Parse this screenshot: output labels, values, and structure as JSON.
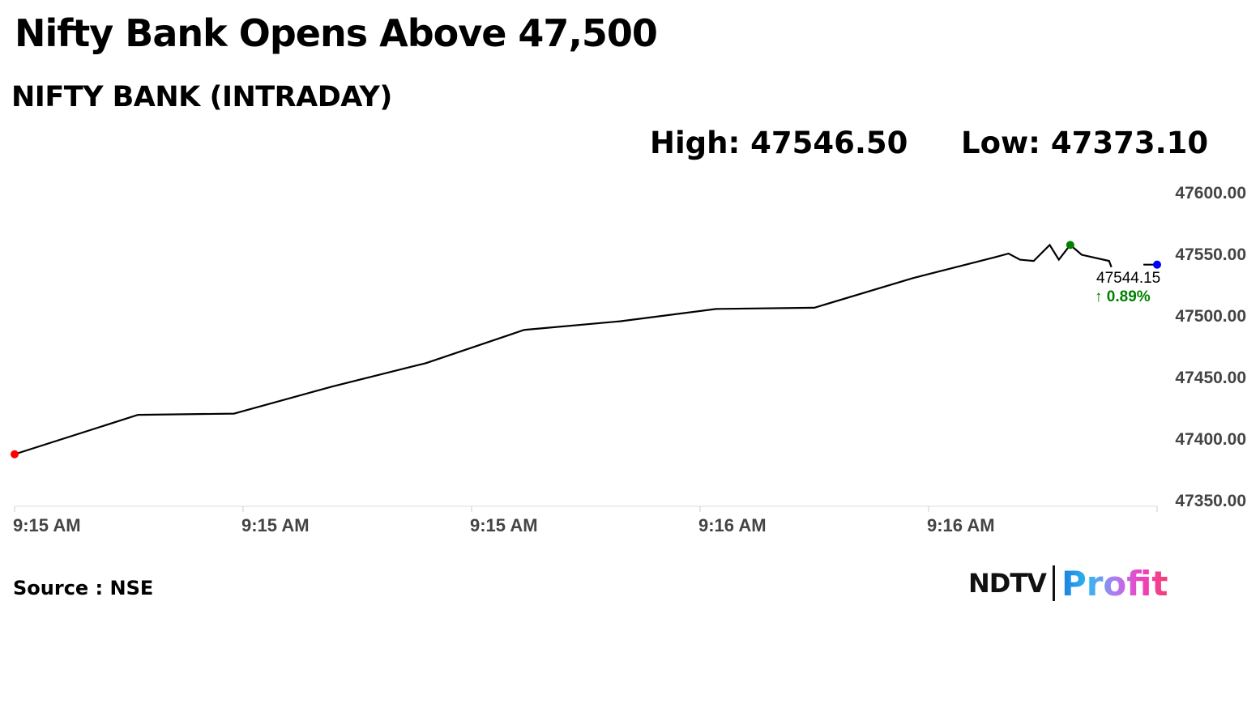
{
  "title": "Nifty Bank Opens Above 47,500",
  "subtitle": "NIFTY BANK (INTRADAY)",
  "high_label": "High: 47546.50",
  "low_label": "Low: 47373.10",
  "source": "Source : NSE",
  "logo": {
    "ndtv": "NDTV",
    "profit": "Profit"
  },
  "chart_data": {
    "type": "line",
    "xlabel": "",
    "ylabel": "",
    "x_ticks": [
      {
        "x": 0,
        "label": "9:15 AM"
      },
      {
        "x": 1,
        "label": "9:15 AM"
      },
      {
        "x": 2,
        "label": "9:15 AM"
      },
      {
        "x": 3,
        "label": "9:16 AM"
      },
      {
        "x": 4,
        "label": "9:16 AM"
      }
    ],
    "xlim": [
      0,
      5
    ],
    "ylim": [
      47350,
      47600
    ],
    "y_ticks": [
      "47600.00",
      "47550.00",
      "47500.00",
      "47450.00",
      "47400.00",
      "47350.00"
    ],
    "y_axis_position": "right",
    "line_color": "#000000",
    "segments": [
      [
        [
          0,
          47387
        ],
        [
          0.54,
          47419
        ],
        [
          0.96,
          47420
        ],
        [
          1.39,
          47442
        ],
        [
          1.8,
          47461
        ],
        [
          2.23,
          47488
        ],
        [
          2.65,
          47495
        ],
        [
          3.07,
          47505
        ],
        [
          3.5,
          47506
        ],
        [
          3.93,
          47530
        ],
        [
          4.29,
          47547
        ],
        [
          4.35,
          47550
        ],
        [
          4.4,
          47545
        ],
        [
          4.46,
          47544
        ],
        [
          4.53,
          47557
        ],
        [
          4.57,
          47545
        ],
        [
          4.62,
          47557
        ],
        [
          4.67,
          47549
        ],
        [
          4.79,
          47544
        ],
        [
          4.8,
          47539
        ]
      ],
      [
        [
          4.94,
          47541
        ],
        [
          5.0,
          47541
        ]
      ]
    ],
    "markers": [
      {
        "name": "open",
        "x": 0,
        "y": 47387,
        "color": "#ff0000"
      },
      {
        "name": "high",
        "x": 4.62,
        "y": 47557,
        "color": "#008000"
      },
      {
        "name": "last",
        "x": 5.0,
        "y": 47541,
        "color": "#0000ff"
      }
    ],
    "last_value": "47544.15",
    "change": "0.89%",
    "change_color": "#008000"
  }
}
